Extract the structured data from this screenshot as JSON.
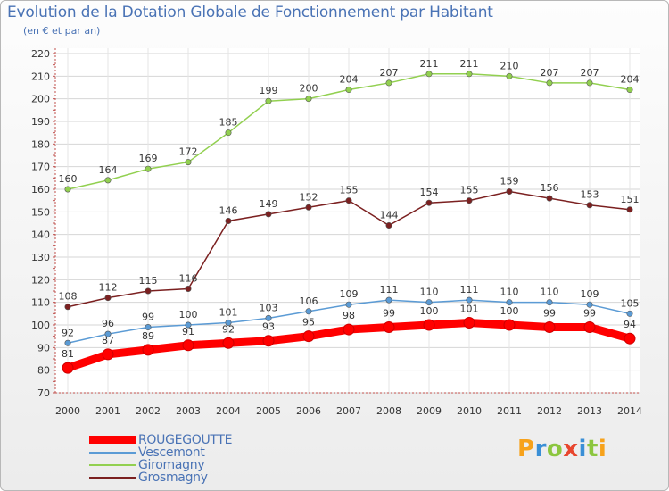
{
  "header": {
    "title": "Evolution de la Dotation Globale de Fonctionnement par Habitant",
    "subtitle": "(en € et par an)"
  },
  "logo": {
    "letters": [
      "P",
      "r",
      "o",
      "x",
      "i",
      "t",
      "i"
    ]
  },
  "chart_data": {
    "type": "line",
    "title": "Evolution de la Dotation Globale de Fonctionnement par Habitant",
    "subtitle": "(en € et par an)",
    "xlabel": "",
    "ylabel": "",
    "x": [
      "2000",
      "2001",
      "2002",
      "2003",
      "2004",
      "2005",
      "2006",
      "2007",
      "2008",
      "2009",
      "2010",
      "2011",
      "2012",
      "2013",
      "2014"
    ],
    "ylim": [
      70,
      220
    ],
    "yticks": [
      70,
      80,
      90,
      100,
      110,
      120,
      130,
      140,
      150,
      160,
      170,
      180,
      190,
      200,
      210,
      220
    ],
    "grid": true,
    "legend_position": "bottom-left",
    "series": [
      {
        "name": "ROUGEGOUTTE",
        "color": "#ff0000",
        "emphasis": true,
        "values": [
          81,
          87,
          89,
          91,
          92,
          93,
          95,
          98,
          99,
          100,
          101,
          100,
          99,
          99,
          94
        ]
      },
      {
        "name": "Vescemont",
        "color": "#5b9bd5",
        "values": [
          92,
          96,
          99,
          100,
          101,
          103,
          106,
          109,
          111,
          110,
          111,
          110,
          110,
          109,
          105
        ]
      },
      {
        "name": "Giromagny",
        "color": "#92d050",
        "values": [
          160,
          164,
          169,
          172,
          185,
          199,
          200,
          204,
          207,
          211,
          211,
          210,
          207,
          207,
          204
        ]
      },
      {
        "name": "Grosmagny",
        "color": "#7b2020",
        "values": [
          108,
          112,
          115,
          116,
          146,
          149,
          152,
          155,
          144,
          154,
          155,
          159,
          156,
          153,
          151
        ]
      }
    ]
  }
}
